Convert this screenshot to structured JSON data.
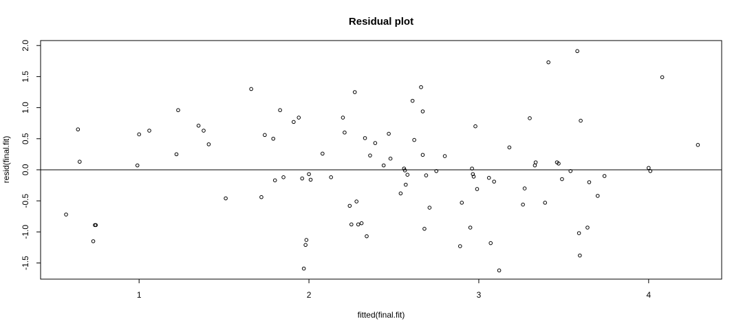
{
  "chart_data": {
    "type": "scatter",
    "title": "Residual plot",
    "xlabel": "fitted(final.fit)",
    "ylabel": "resid(final.fit)",
    "xlim": [
      0.42,
      4.43
    ],
    "ylim": [
      -1.76,
      2.08
    ],
    "grid": false,
    "legend": "none",
    "x_ticks": [
      1,
      2,
      3,
      4
    ],
    "x_tick_labels": [
      "1",
      "2",
      "3",
      "4"
    ],
    "y_ticks": [
      -1.5,
      -1.0,
      -0.5,
      0.0,
      0.5,
      1.0,
      1.5,
      2.0
    ],
    "y_tick_labels": [
      "-1.5",
      "-1.0",
      "-0.5",
      "0.0",
      "0.5",
      "1.0",
      "1.5",
      "2.0"
    ],
    "reference_line": {
      "y": 0
    },
    "points": [
      [
        0.57,
        -0.72
      ],
      [
        0.64,
        0.65
      ],
      [
        0.65,
        0.13
      ],
      [
        0.73,
        -1.15
      ],
      [
        0.74,
        -0.89
      ],
      [
        0.745,
        -0.89
      ],
      [
        0.99,
        0.07
      ],
      [
        1.0,
        0.57
      ],
      [
        1.06,
        0.63
      ],
      [
        1.22,
        0.25
      ],
      [
        1.23,
        0.96
      ],
      [
        1.35,
        0.71
      ],
      [
        1.38,
        0.63
      ],
      [
        1.41,
        0.41
      ],
      [
        1.51,
        -0.46
      ],
      [
        1.66,
        1.3
      ],
      [
        1.72,
        -0.44
      ],
      [
        1.74,
        0.56
      ],
      [
        1.79,
        0.5
      ],
      [
        1.8,
        -0.17
      ],
      [
        1.83,
        0.96
      ],
      [
        1.85,
        -0.12
      ],
      [
        1.91,
        0.77
      ],
      [
        1.94,
        0.84
      ],
      [
        1.96,
        -0.14
      ],
      [
        1.97,
        -1.59
      ],
      [
        1.98,
        -1.21
      ],
      [
        1.985,
        -1.13
      ],
      [
        2.0,
        -0.07
      ],
      [
        2.01,
        -0.16
      ],
      [
        2.08,
        0.26
      ],
      [
        2.13,
        -0.12
      ],
      [
        2.2,
        0.84
      ],
      [
        2.21,
        0.6
      ],
      [
        2.24,
        -0.58
      ],
      [
        2.25,
        -0.88
      ],
      [
        2.27,
        1.25
      ],
      [
        2.28,
        -0.51
      ],
      [
        2.29,
        -0.88
      ],
      [
        2.31,
        -0.86
      ],
      [
        2.33,
        0.51
      ],
      [
        2.34,
        -1.07
      ],
      [
        2.36,
        0.23
      ],
      [
        2.39,
        0.43
      ],
      [
        2.44,
        0.07
      ],
      [
        2.47,
        0.58
      ],
      [
        2.48,
        0.18
      ],
      [
        2.54,
        -0.38
      ],
      [
        2.56,
        0.02
      ],
      [
        2.565,
        -0.01
      ],
      [
        2.57,
        -0.24
      ],
      [
        2.58,
        -0.08
      ],
      [
        2.61,
        1.11
      ],
      [
        2.62,
        0.48
      ],
      [
        2.66,
        1.33
      ],
      [
        2.67,
        0.94
      ],
      [
        2.67,
        0.24
      ],
      [
        2.68,
        -0.95
      ],
      [
        2.69,
        -0.09
      ],
      [
        2.71,
        -0.61
      ],
      [
        2.75,
        -0.02
      ],
      [
        2.8,
        0.22
      ],
      [
        2.89,
        -1.23
      ],
      [
        2.9,
        -0.53
      ],
      [
        2.95,
        -0.93
      ],
      [
        2.96,
        0.02
      ],
      [
        2.965,
        -0.07
      ],
      [
        2.97,
        -0.11
      ],
      [
        2.98,
        0.7
      ],
      [
        2.99,
        -0.31
      ],
      [
        3.06,
        -0.13
      ],
      [
        3.07,
        -1.18
      ],
      [
        3.09,
        -0.19
      ],
      [
        3.12,
        -1.62
      ],
      [
        3.18,
        0.36
      ],
      [
        3.26,
        -0.56
      ],
      [
        3.27,
        -0.3
      ],
      [
        3.3,
        0.83
      ],
      [
        3.33,
        0.07
      ],
      [
        3.335,
        0.12
      ],
      [
        3.39,
        -0.53
      ],
      [
        3.41,
        1.73
      ],
      [
        3.46,
        0.12
      ],
      [
        3.47,
        0.1
      ],
      [
        3.49,
        -0.15
      ],
      [
        3.54,
        -0.02
      ],
      [
        3.58,
        1.91
      ],
      [
        3.59,
        -1.02
      ],
      [
        3.595,
        -1.38
      ],
      [
        3.6,
        0.79
      ],
      [
        3.64,
        -0.93
      ],
      [
        3.65,
        -0.2
      ],
      [
        3.7,
        -0.42
      ],
      [
        3.74,
        -0.1
      ],
      [
        4.0,
        0.03
      ],
      [
        4.01,
        -0.02
      ],
      [
        4.08,
        1.49
      ],
      [
        4.29,
        0.4
      ]
    ]
  }
}
